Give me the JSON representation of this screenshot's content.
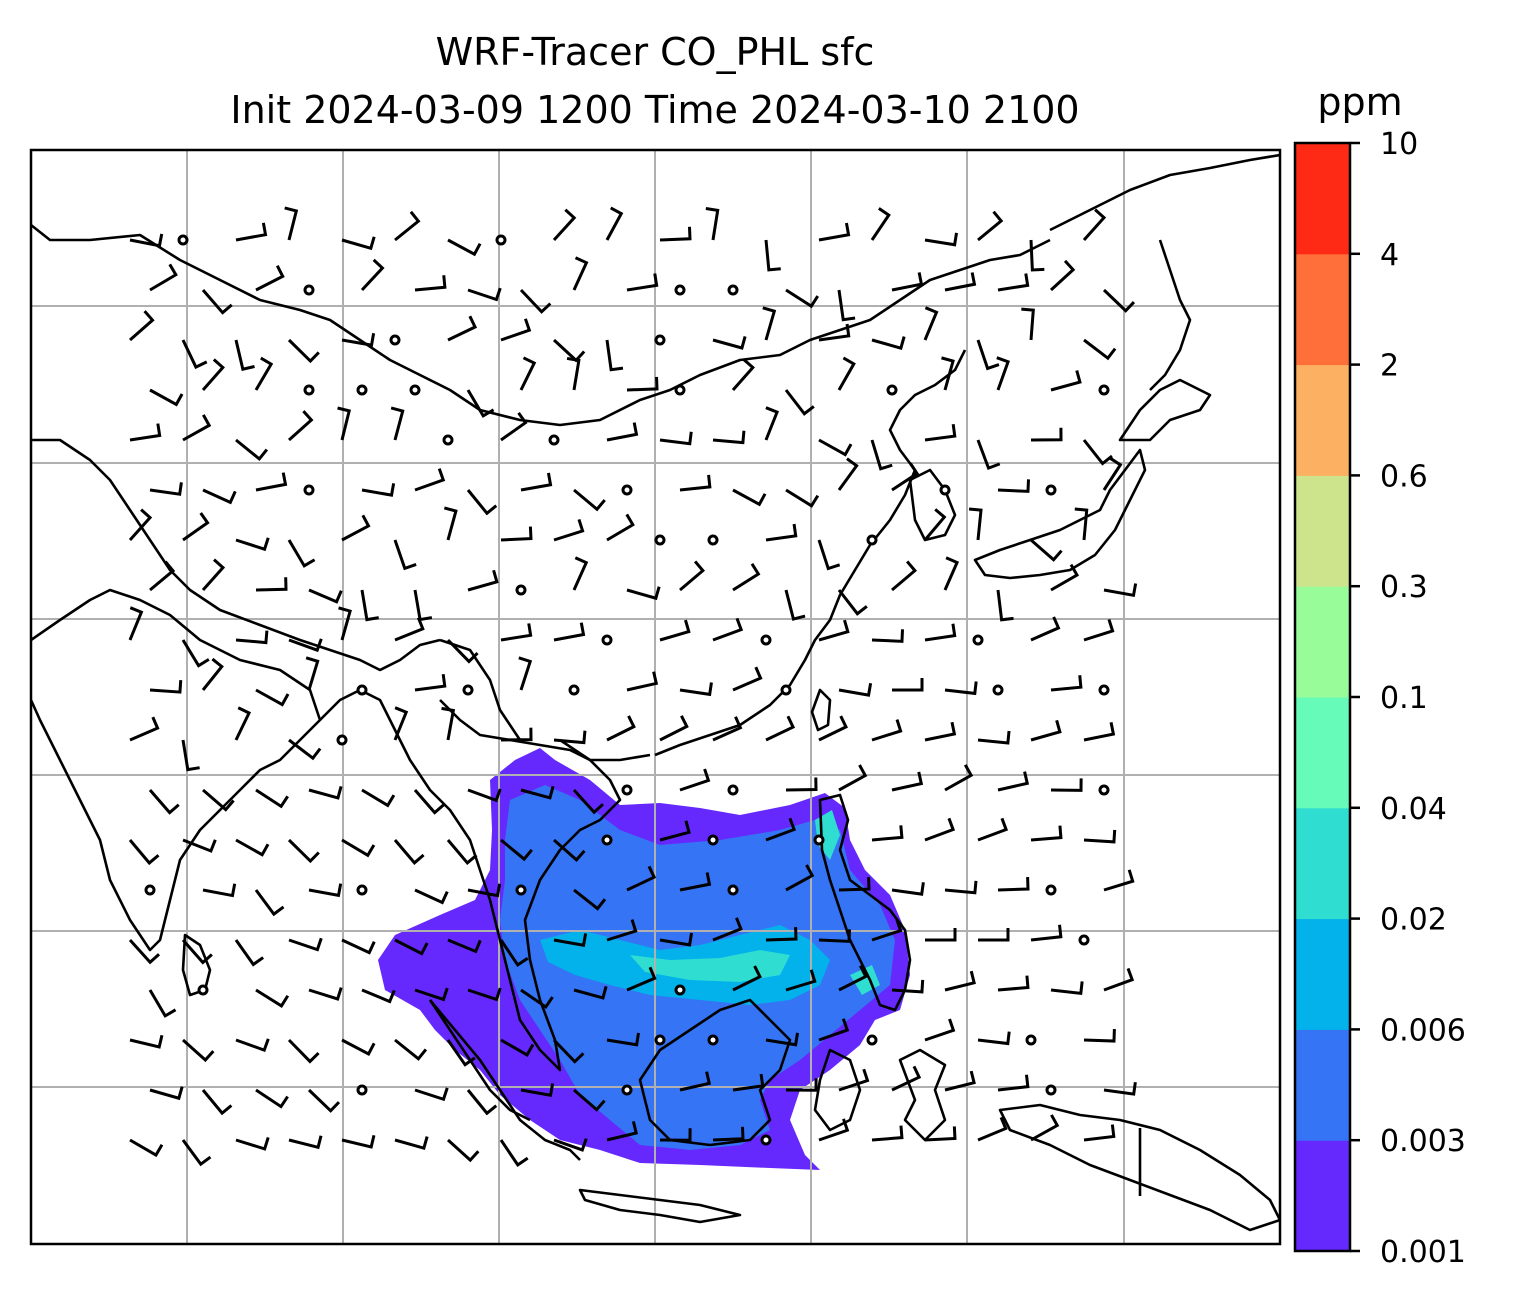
{
  "title": {
    "line1": "WRF-Tracer CO_PHL sfc",
    "line2": "Init 2024-03-09 1200 Time 2024-03-10 2100"
  },
  "colorbar": {
    "unit": "ppm",
    "levels": [
      "0.001",
      "0.003",
      "0.006",
      "0.02",
      "0.04",
      "0.1",
      "0.3",
      "0.6",
      "2",
      "4",
      "10"
    ],
    "colors": [
      "#6629fd",
      "#3574f5",
      "#03b1eb",
      "#2fddd1",
      "#66fbb9",
      "#98fc99",
      "#cde38c",
      "#fcb062",
      "#ff6f3a",
      "#ff2a16"
    ]
  },
  "map": {
    "tracer": "CO_PHL",
    "level": "sfc",
    "gridlines": true,
    "features": [
      "coastlines",
      "country-borders",
      "wind-barbs",
      "tracer-contours"
    ]
  }
}
